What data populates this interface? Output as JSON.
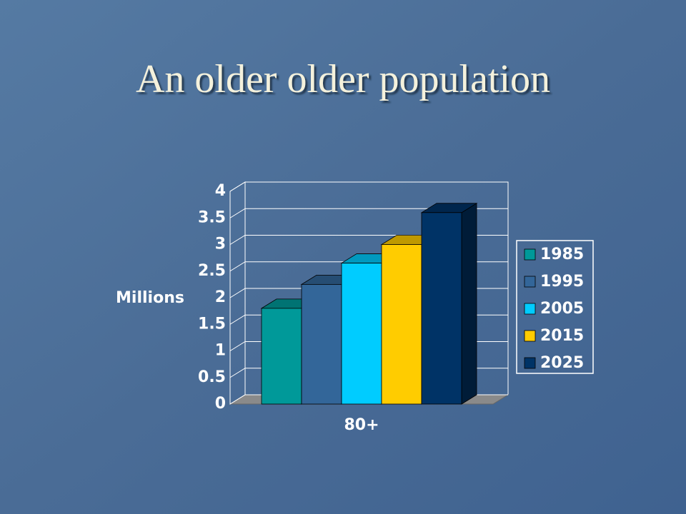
{
  "chart_data": {
    "type": "bar3d",
    "title": "An older older population",
    "y_label": "Millions",
    "categories": [
      "80+"
    ],
    "series": [
      {
        "name": "1985",
        "color": "#009999",
        "values": [
          1.8
        ]
      },
      {
        "name": "1995",
        "color": "#336699",
        "values": [
          2.25
        ]
      },
      {
        "name": "2005",
        "color": "#00ccff",
        "values": [
          2.65
        ]
      },
      {
        "name": "2015",
        "color": "#ffcc00",
        "values": [
          3.0
        ]
      },
      {
        "name": "2025",
        "color": "#003366",
        "values": [
          3.6
        ]
      }
    ],
    "ylim": [
      0,
      4
    ],
    "yticks": [
      0,
      0.5,
      1,
      1.5,
      2,
      2.5,
      3,
      3.5,
      4
    ],
    "grid": true,
    "legend": "right"
  }
}
